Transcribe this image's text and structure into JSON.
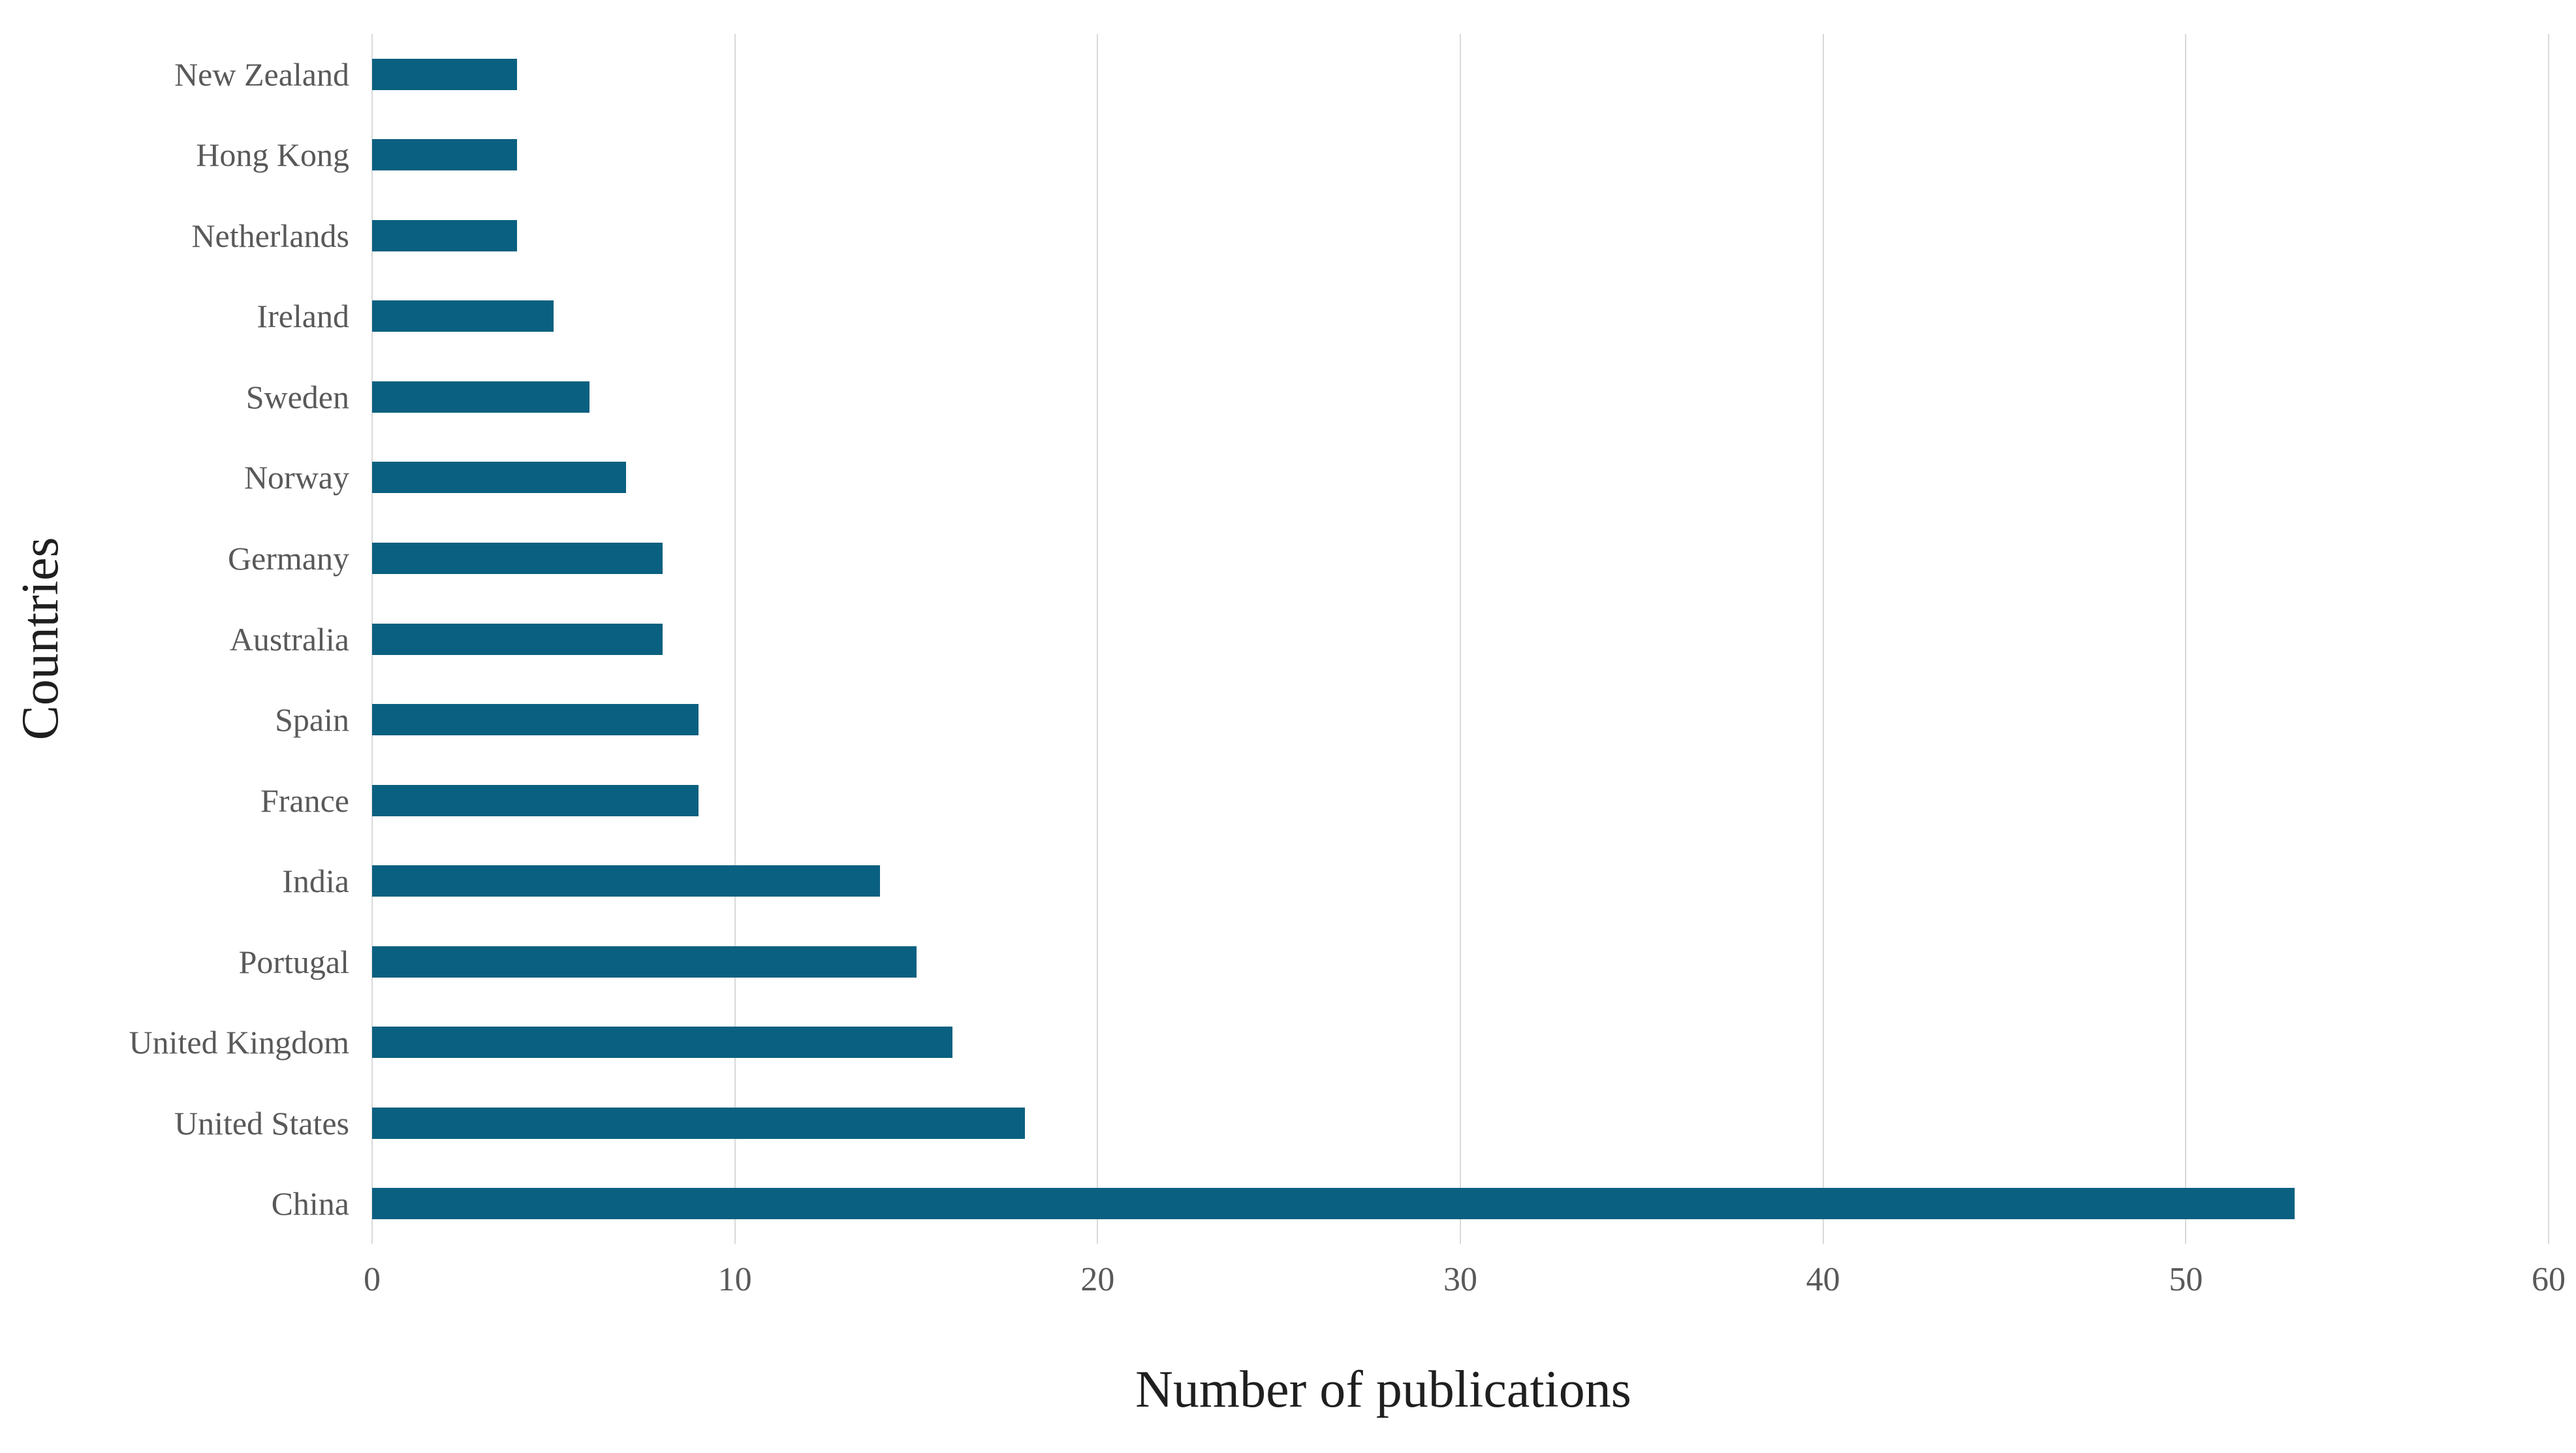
{
  "chart_data": {
    "type": "bar",
    "orientation": "horizontal",
    "title": "",
    "xlabel": "Number of publications",
    "ylabel": "Countries",
    "categories": [
      "New Zealand",
      "Hong Kong",
      "Netherlands",
      "Ireland",
      "Sweden",
      "Norway",
      "Germany",
      "Australia",
      "Spain",
      "France",
      "India",
      "Portugal",
      "United Kingdom",
      "United States",
      "China"
    ],
    "values": [
      4,
      4,
      4,
      5,
      6,
      7,
      8,
      8,
      9,
      9,
      14,
      15,
      16,
      18,
      53
    ],
    "xlim": [
      0,
      60
    ],
    "xticks": [
      0,
      10,
      20,
      30,
      40,
      50,
      60
    ],
    "tick_labels": [
      "0",
      "10",
      "20",
      "30",
      "40",
      "50",
      "60"
    ],
    "grid": "vertical-gridlines-on",
    "legend": "none",
    "colors": {
      "bar": "#0a6080",
      "axis_text": "#595959",
      "title_text": "#1f1f1f",
      "gridline": "#d9d9d9",
      "background": "#ffffff"
    }
  }
}
